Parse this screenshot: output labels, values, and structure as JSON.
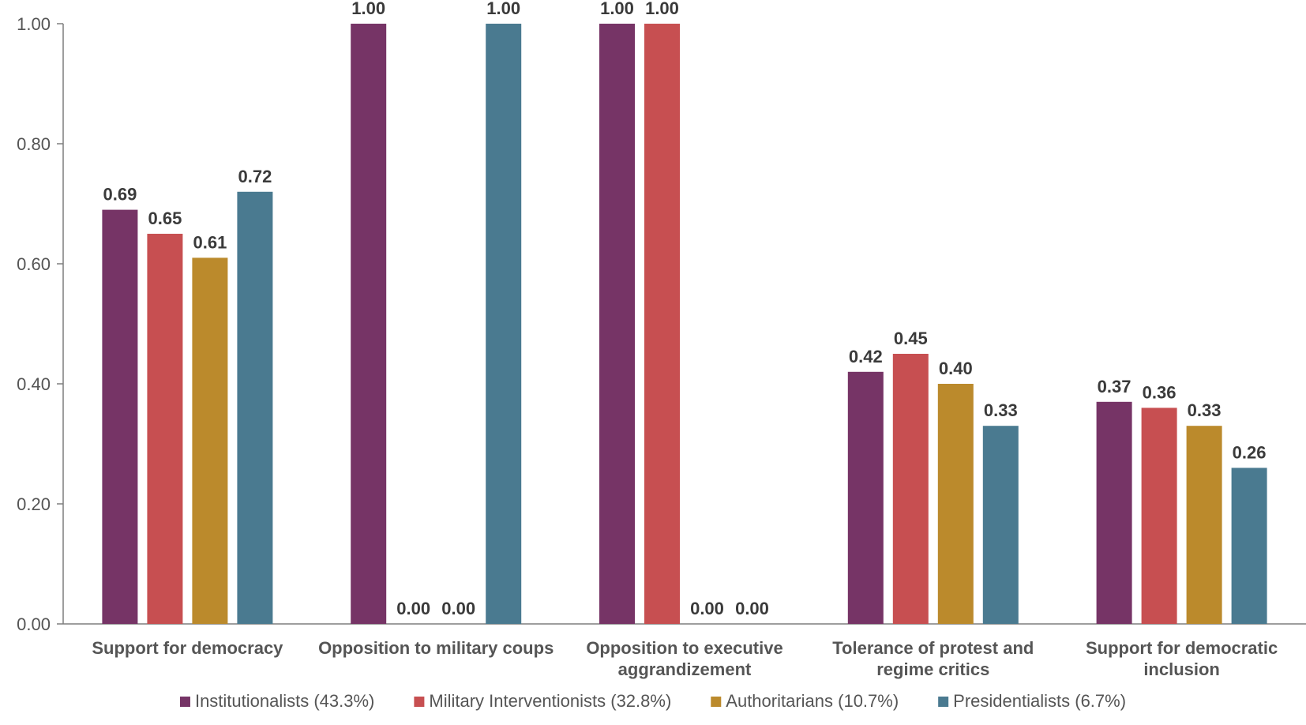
{
  "chart_data": {
    "type": "bar",
    "categories": [
      [
        "Support for democracy"
      ],
      [
        "Opposition to military coups"
      ],
      [
        "Opposition to executive",
        "aggrandizement"
      ],
      [
        "Tolerance of protest and",
        "regime critics"
      ],
      [
        "Support for democratic",
        "inclusion"
      ]
    ],
    "series": [
      {
        "name": "Institutionalists (43.3%)",
        "color": "#763466",
        "values": [
          0.69,
          1.0,
          1.0,
          0.42,
          0.37
        ],
        "labels": [
          "0.69",
          "1.00",
          "1.00",
          "0.42",
          "0.37"
        ]
      },
      {
        "name": "Military Interventionists (32.8%)",
        "color": "#c74f51",
        "values": [
          0.65,
          0.0,
          1.0,
          0.45,
          0.36
        ],
        "labels": [
          "0.65",
          "0.00",
          "1.00",
          "0.45",
          "0.36"
        ]
      },
      {
        "name": "Authoritarians (10.7%)",
        "color": "#bb8a2c",
        "values": [
          0.61,
          0.0,
          0.0,
          0.4,
          0.33
        ],
        "labels": [
          "0.61",
          "0.00",
          "0.00",
          "0.40",
          "0.33"
        ]
      },
      {
        "name": "Presidentialists (6.7%)",
        "color": "#4a7a90",
        "values": [
          0.72,
          1.0,
          0.0,
          0.33,
          0.26
        ],
        "labels": [
          "0.72",
          "1.00",
          "0.00",
          "0.33",
          "0.26"
        ]
      }
    ],
    "yticks": [
      "0.00",
      "0.20",
      "0.40",
      "0.60",
      "0.80",
      "1.00"
    ],
    "ylim": [
      0,
      1
    ],
    "title": "",
    "xlabel": "",
    "ylabel": "",
    "grid": false,
    "legend_position": "bottom"
  }
}
